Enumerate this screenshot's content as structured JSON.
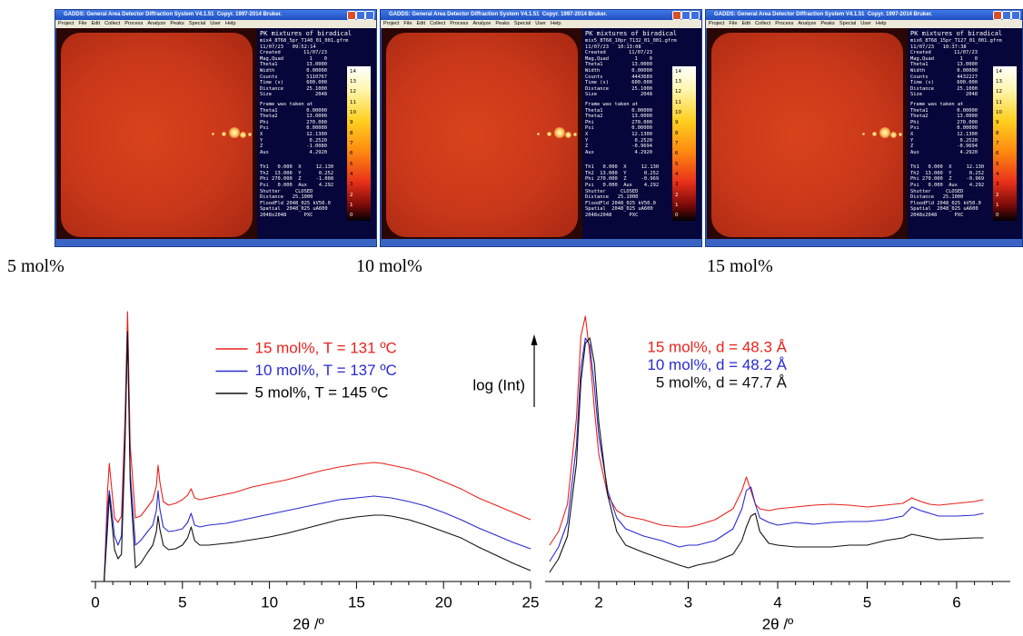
{
  "panels": [
    {
      "title": "GADDS: General Area Detector Diffraction System V4.1.51  Copyr. 1997-2014 Bruker.",
      "menu": [
        "Project",
        "File",
        "Edit",
        "Collect",
        "Process",
        "Analyze",
        "Peaks",
        "Special",
        "User",
        "Help"
      ],
      "header": "PK mixtures of biradical",
      "file": "mix4_8T68_5pr_T140_01_001.gfrm",
      "stamp": "11/07/23   09:52:14",
      "info": [
        [
          "Created",
          "11/07/23"
        ],
        [
          "Mag,Quad",
          "1    0"
        ],
        [
          "Theta1",
          "13.0000"
        ],
        [
          "Width",
          "0.00000"
        ],
        [
          "Counts",
          "5110767"
        ],
        [
          "Time (s)",
          "600.000"
        ],
        [
          "Distance",
          "25.1000"
        ],
        [
          "Size",
          "2048"
        ]
      ],
      "frame_header": "Frame was taken at",
      "frame": [
        [
          "Theta1",
          "0.00000"
        ],
        [
          "Theta2",
          "13.0000"
        ],
        [
          "Phi",
          "270.000"
        ],
        [
          "Psi",
          "0.00000"
        ],
        [
          "X",
          "12.1300"
        ],
        [
          "Y",
          "0.2520"
        ],
        [
          "Z",
          "-1.0080"
        ],
        [
          "Aux",
          "4.2920"
        ]
      ],
      "status": [
        "Th1   0.000  X     12.130",
        "Th2  13.000  Y      0.252",
        "Phi 270.000  Z     -1.008",
        "Psi   0.000  Aux    4.292",
        "Shutter     CLOSED",
        "Distance   25.1000",
        "FloodFld 2048_025 kV50.0",
        "Spatial  2048_025 uA600",
        "2048x2048      PXC"
      ],
      "scale": [
        "14",
        "13",
        "12",
        "11",
        "10",
        "9",
        "8",
        "7",
        "6",
        "5",
        "4",
        "3",
        "2",
        "1",
        "0"
      ],
      "caption": "5 mol%"
    },
    {
      "title": "GADDS: General Area Detector Diffraction System V4.1.51  Copyr. 1997-2014 Bruker.",
      "menu": [
        "Project",
        "File",
        "Edit",
        "Collect",
        "Process",
        "Analyze",
        "Peaks",
        "Special",
        "User",
        "Help"
      ],
      "header": "PK mixtures of biradical",
      "file": "mix5_8T68_10pr_T132_01_001.gfrm",
      "stamp": "11/07/23   10:13:08",
      "info": [
        [
          "Created",
          "11/07/23"
        ],
        [
          "Mag,Quad",
          "1    0"
        ],
        [
          "Theta1",
          "13.0000"
        ],
        [
          "Width",
          "0.00000"
        ],
        [
          "Counts",
          "4443689"
        ],
        [
          "Time (s)",
          "600.000"
        ],
        [
          "Distance",
          "25.1000"
        ],
        [
          "Size",
          "2048"
        ]
      ],
      "frame_header": "Frame was taken at",
      "frame": [
        [
          "Theta1",
          "0.00000"
        ],
        [
          "Theta2",
          "13.0000"
        ],
        [
          "Phi",
          "270.000"
        ],
        [
          "Psi",
          "0.00000"
        ],
        [
          "X",
          "12.1300"
        ],
        [
          "Y",
          "0.2520"
        ],
        [
          "Z",
          "-0.9694"
        ],
        [
          "Aux",
          "4.2920"
        ]
      ],
      "status": [
        "Th1   0.000  X     12.130",
        "Th2  13.000  Y      0.252",
        "Phi 270.000  Z     -0.969",
        "Psi   0.000  Aux    4.292",
        "Shutter     CLOSED",
        "Distance   25.1000",
        "FloodFld 2048_025 kV50.0",
        "Spatial  2048_025 uA600",
        "2048x2048      PXC"
      ],
      "scale": [
        "14",
        "13",
        "12",
        "11",
        "10",
        "9",
        "8",
        "7",
        "6",
        "5",
        "4",
        "3",
        "2",
        "1",
        "0"
      ],
      "caption": "10 mol%"
    },
    {
      "title": "GADDS: General Area Detector Diffraction System V4.1.51  Copyr. 1997-2014 Bruker.",
      "menu": [
        "Project",
        "File",
        "Edit",
        "Collect",
        "Process",
        "Analyze",
        "Peaks",
        "Special",
        "User",
        "Help"
      ],
      "header": "PK mixtures of biradical",
      "file": "mix6_8T68_15pr_T127_01_001.gfrm",
      "stamp": "11/07/23   10:37:38",
      "info": [
        [
          "Created",
          "11/07/23"
        ],
        [
          "Mag,Quad",
          "1    0"
        ],
        [
          "Theta1",
          "13.0000"
        ],
        [
          "Width",
          "0.00000"
        ],
        [
          "Counts",
          "4432227"
        ],
        [
          "Time (s)",
          "600.000"
        ],
        [
          "Distance",
          "25.1000"
        ],
        [
          "Size",
          "2048"
        ]
      ],
      "frame_header": "Frame was taken at",
      "frame": [
        [
          "Theta1",
          "0.00000"
        ],
        [
          "Theta2",
          "13.0000"
        ],
        [
          "Phi",
          "270.000"
        ],
        [
          "Psi",
          "0.00000"
        ],
        [
          "X",
          "12.1300"
        ],
        [
          "Y",
          "0.2520"
        ],
        [
          "Z",
          "-0.9694"
        ],
        [
          "Aux",
          "4.2920"
        ]
      ],
      "status": [
        "Th1   0.000  X     12.130",
        "Th2  13.000  Y      0.252",
        "Phi 270.000  Z     -0.969",
        "Psi   0.000  Aux    4.292",
        "Shutter     CLOSED",
        "Distance   25.1000",
        "FloodFld 2048_025 kV50.0",
        "Spatial  2048_025 uA600",
        "2048x2048      PXC"
      ],
      "scale": [
        "14",
        "13",
        "12",
        "11",
        "10",
        "9",
        "8",
        "7",
        "6",
        "5",
        "4",
        "3",
        "2",
        "1",
        "0"
      ],
      "caption": "15 mol%"
    }
  ],
  "chart_data": [
    {
      "type": "line",
      "x_label": "2θ /º",
      "xlim": [
        0,
        25
      ],
      "ylim": [
        0,
        310
      ],
      "xticks": [
        0,
        5,
        10,
        15,
        20,
        25
      ],
      "xminorticks": [
        1,
        2,
        3,
        4,
        6,
        7,
        8,
        9,
        11,
        12,
        13,
        14,
        16,
        17,
        18,
        19,
        21,
        22,
        23,
        24
      ],
      "legend": "upper center",
      "legend_swatches": true,
      "x": [
        0.5,
        0.7,
        0.8,
        0.9,
        1.1,
        1.3,
        1.5,
        1.7,
        1.85,
        2.0,
        2.3,
        2.6,
        3.0,
        3.3,
        3.5,
        3.6,
        3.7,
        3.9,
        4.2,
        4.6,
        5.0,
        5.3,
        5.5,
        5.7,
        6.0,
        6.5,
        7,
        7.5,
        8,
        9,
        10,
        11,
        12,
        13,
        14,
        15,
        16,
        16.5,
        17,
        18,
        19,
        20,
        21,
        22,
        23,
        24,
        25
      ],
      "series": [
        {
          "name": "15 mol%, T = 131 ºC",
          "color": "#e8221c",
          "values": [
            0,
            100,
            130,
            110,
            70,
            65,
            72,
            180,
            297,
            150,
            70,
            72,
            82,
            90,
            105,
            128,
            110,
            88,
            84,
            86,
            90,
            95,
            102,
            92,
            90,
            92,
            94,
            96,
            98,
            104,
            108,
            112,
            117,
            122,
            126,
            129,
            131,
            130,
            128,
            124,
            118,
            110,
            102,
            92,
            84,
            76,
            68
          ]
        },
        {
          "name": "10 mol%, T = 137 ºC",
          "color": "#2a2ad0",
          "values": [
            0,
            80,
            100,
            85,
            50,
            40,
            50,
            160,
            275,
            120,
            40,
            45,
            55,
            62,
            78,
            100,
            80,
            60,
            55,
            56,
            58,
            65,
            75,
            62,
            60,
            62,
            63,
            64,
            66,
            70,
            74,
            78,
            82,
            86,
            90,
            92,
            94,
            93,
            92,
            88,
            83,
            76,
            68,
            59,
            51,
            43,
            36
          ]
        },
        {
          "name": "5 mol%, T = 145 ºC",
          "color": "#111111",
          "values": [
            0,
            60,
            95,
            75,
            35,
            25,
            30,
            150,
            275,
            110,
            15,
            20,
            32,
            40,
            55,
            72,
            58,
            40,
            35,
            36,
            40,
            48,
            60,
            45,
            40,
            40,
            41,
            42,
            43,
            46,
            49,
            53,
            58,
            63,
            68,
            71,
            73,
            73,
            72,
            68,
            62,
            55,
            48,
            38,
            29,
            20,
            12
          ]
        }
      ]
    },
    {
      "type": "line",
      "x_label": "2θ /º",
      "annotation": "log (Int)",
      "xlim": [
        1.4,
        6.6
      ],
      "ylim": [
        0,
        310
      ],
      "xticks": [
        2,
        3,
        4,
        5,
        6
      ],
      "xminorticks": [
        1.6,
        1.8,
        2.2,
        2.4,
        2.6,
        2.8,
        3.2,
        3.4,
        3.6,
        3.8,
        4.2,
        4.4,
        4.6,
        4.8,
        5.2,
        5.4,
        5.6,
        5.8,
        6.2,
        6.4
      ],
      "legend": "upper center",
      "legend_swatches": false,
      "x": [
        1.45,
        1.55,
        1.65,
        1.75,
        1.8,
        1.85,
        1.9,
        1.95,
        2.0,
        2.1,
        2.2,
        2.3,
        2.5,
        2.7,
        2.9,
        3.0,
        3.1,
        3.3,
        3.5,
        3.6,
        3.65,
        3.7,
        3.75,
        3.8,
        3.9,
        4.0,
        4.2,
        4.4,
        4.6,
        4.8,
        5.0,
        5.2,
        5.4,
        5.5,
        5.6,
        5.7,
        5.8,
        6.0,
        6.2,
        6.3
      ],
      "series": [
        {
          "name": "15 mol%, d = 48.3 Å",
          "color": "#e8221c",
          "values": [
            40,
            55,
            85,
            180,
            270,
            292,
            250,
            190,
            140,
            95,
            78,
            72,
            68,
            62,
            60,
            60,
            62,
            68,
            80,
            100,
            115,
            100,
            85,
            80,
            78,
            80,
            82,
            84,
            85,
            84,
            82,
            84,
            86,
            92,
            88,
            85,
            84,
            86,
            88,
            90
          ]
        },
        {
          "name": "10 mol%, d = 48.2 Å",
          "color": "#2a2ad0",
          "values": [
            22,
            38,
            65,
            150,
            235,
            268,
            260,
            215,
            160,
            100,
            70,
            58,
            50,
            45,
            38,
            40,
            40,
            45,
            58,
            80,
            100,
            104,
            85,
            70,
            65,
            62,
            65,
            63,
            65,
            66,
            66,
            68,
            72,
            82,
            78,
            75,
            72,
            72,
            73,
            75
          ]
        },
        {
          "name": "5 mol%, d = 47.7 Å",
          "color": "#111111",
          "values": [
            10,
            25,
            50,
            130,
            220,
            262,
            268,
            240,
            175,
            95,
            55,
            40,
            32,
            25,
            18,
            15,
            18,
            22,
            30,
            45,
            60,
            72,
            75,
            55,
            42,
            40,
            38,
            38,
            38,
            40,
            40,
            45,
            48,
            52,
            50,
            48,
            46,
            47,
            48,
            48
          ]
        }
      ]
    }
  ]
}
